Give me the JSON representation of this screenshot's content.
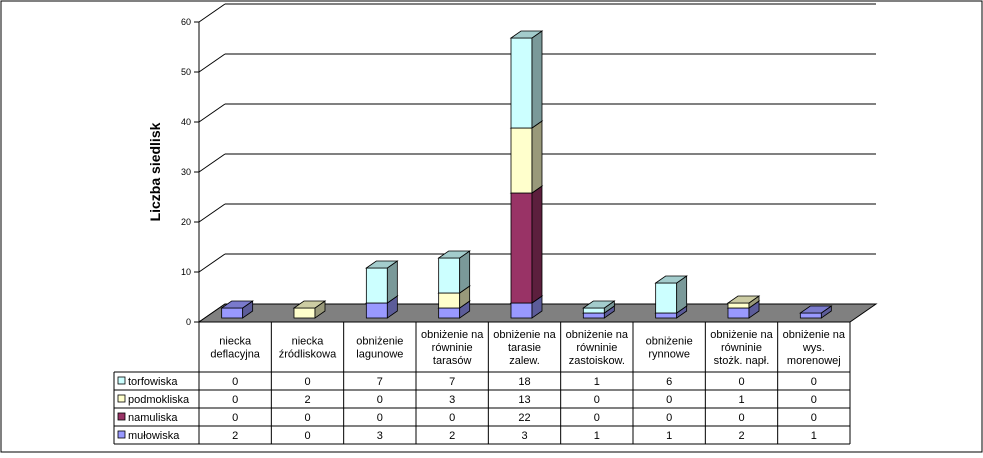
{
  "chart_data": {
    "type": "bar",
    "stacked": true,
    "three_d": true,
    "title": "",
    "xlabel": "",
    "ylabel": "Liczba siedlisk",
    "ylim": [
      0,
      60
    ],
    "yticks": [
      0,
      10,
      20,
      30,
      40,
      50,
      60
    ],
    "grid": true,
    "legend": "table-left",
    "categories": [
      [
        "niecka",
        "deflacyjna"
      ],
      [
        "niecka",
        "źródliskowa"
      ],
      [
        "obniżenie",
        "lagunowe"
      ],
      [
        "obniżenie na",
        "równinie",
        "tarasów"
      ],
      [
        "obniżenie na",
        "tarasie",
        "zalew."
      ],
      [
        "obniżenie na",
        "równinie",
        "zastoiskow."
      ],
      [
        "obniżenie",
        "rynnowe"
      ],
      [
        "obniżenie na",
        "równinie",
        "stożk. napł."
      ],
      [
        "obniżenie na",
        "wys.",
        "morenowej"
      ]
    ],
    "series": [
      {
        "name": "torfowiska",
        "color": "#ccffff",
        "values": [
          0,
          0,
          7,
          7,
          18,
          1,
          6,
          0,
          0
        ]
      },
      {
        "name": "podmokliska",
        "color": "#ffffcc",
        "values": [
          0,
          2,
          0,
          3,
          13,
          0,
          0,
          1,
          0
        ]
      },
      {
        "name": "namuliska",
        "color": "#993366",
        "values": [
          0,
          0,
          0,
          0,
          22,
          0,
          0,
          0,
          0
        ]
      },
      {
        "name": "mułowiska",
        "color": "#9999ff",
        "values": [
          2,
          0,
          3,
          2,
          3,
          1,
          1,
          2,
          1
        ]
      }
    ]
  }
}
